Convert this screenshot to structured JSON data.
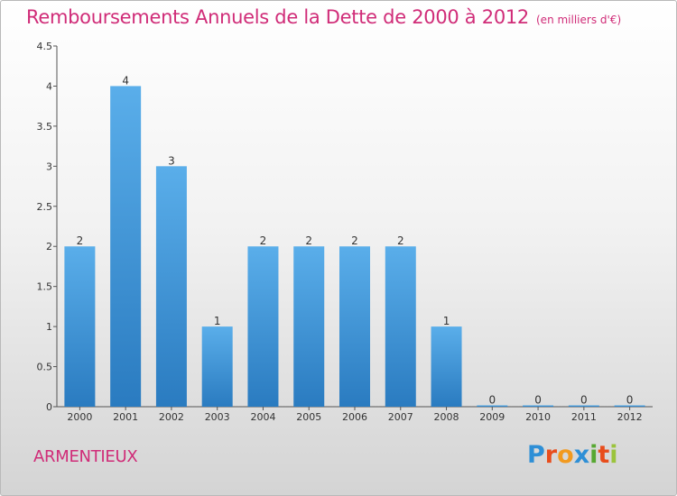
{
  "header": {
    "title": "Remboursements Annuels de la Dette de 2000 à 2012",
    "unit": "(en milliers d'€)"
  },
  "footer": {
    "commune": "ARMENTIEUX",
    "brand": [
      "P",
      "r",
      "o",
      "x",
      "i",
      "t",
      "i"
    ]
  },
  "colors": {
    "title": "#d02c78",
    "bar_top": "#5aaeea",
    "bar_bottom": "#2a7bc0"
  },
  "chart_data": {
    "type": "bar",
    "title": "Remboursements Annuels de la Dette de 2000 à 2012",
    "subtitle": "(en milliers d'€)",
    "xlabel": "",
    "ylabel": "",
    "categories": [
      "2000",
      "2001",
      "2002",
      "2003",
      "2004",
      "2005",
      "2006",
      "2007",
      "2008",
      "2009",
      "2010",
      "2011",
      "2012"
    ],
    "values": [
      2,
      4,
      3,
      1,
      2,
      2,
      2,
      2,
      1,
      0,
      0,
      0,
      0
    ],
    "data_labels": [
      "2",
      "4",
      "3",
      "1",
      "2",
      "2",
      "2",
      "2",
      "1",
      "0",
      "0",
      "0",
      "0"
    ],
    "ylim": [
      0,
      4.5
    ],
    "yticks": [
      0,
      0.5,
      1,
      1.5,
      2,
      2.5,
      3,
      3.5,
      4,
      4.5
    ],
    "ytick_labels": [
      "0",
      "0.5",
      "1",
      "1.5",
      "2",
      "2.5",
      "3",
      "3.5",
      "4",
      "4.5"
    ],
    "grid": false,
    "legend": "none"
  }
}
